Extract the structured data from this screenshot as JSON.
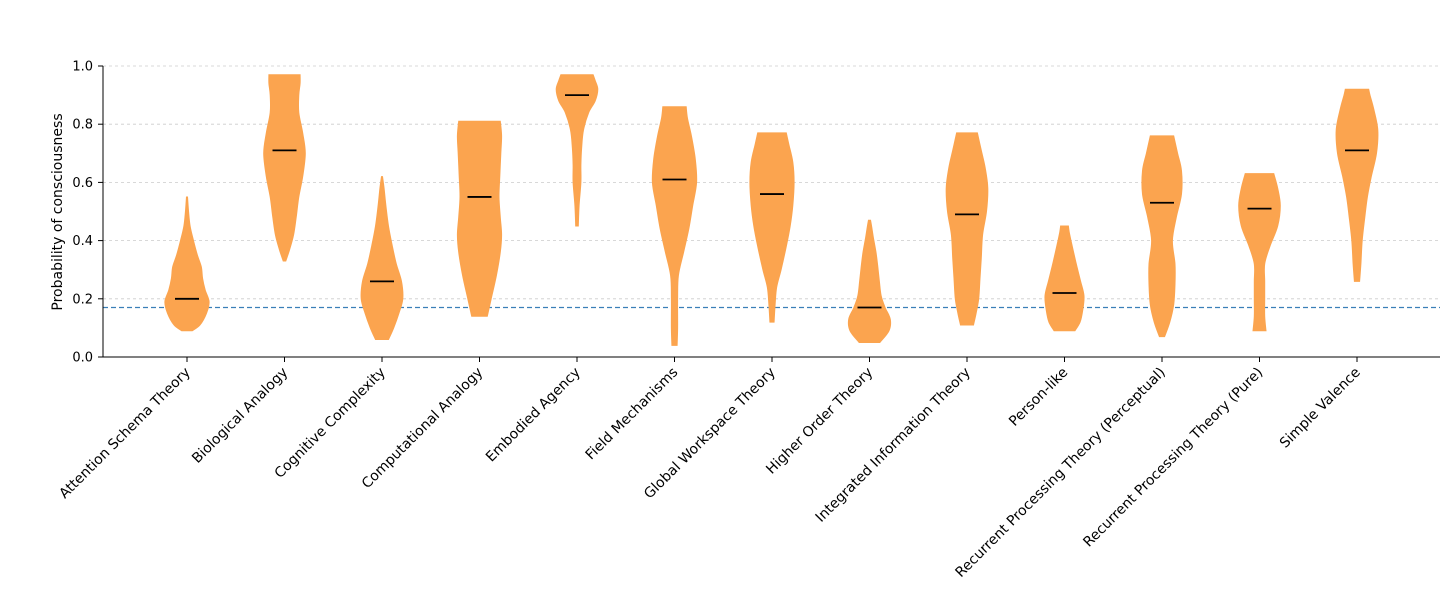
{
  "colors": {
    "violin": "#FBA44F",
    "median": "#000000",
    "reference_line": "#3A7FB8",
    "grid": "#cccccc",
    "axis": "#000000"
  },
  "chart_data": {
    "type": "violin",
    "title": "",
    "xlabel": "",
    "ylabel": "Probability of consciousness",
    "ylim": [
      0.0,
      1.0
    ],
    "yticks": [
      0.0,
      0.2,
      0.4,
      0.6,
      0.8,
      1.0
    ],
    "ytick_labels": [
      "0.0",
      "0.2",
      "0.4",
      "0.6",
      "0.8",
      "1.0"
    ],
    "grid": "horizontal dashed",
    "reference_line": {
      "y": 0.17,
      "style": "dashed"
    },
    "categories": [
      "Attention Schema Theory",
      "Biological Analogy",
      "Cognitive Complexity",
      "Computational Analogy",
      "Embodied Agency",
      "Field Mechanisms",
      "Global Workspace Theory",
      "Higher Order Theory",
      "Integrated Information Theory",
      "Person-like",
      "Recurrent Processing Theory (Perceptual)",
      "Recurrent Processing Theory (Pure)",
      "Simple Valence"
    ],
    "medians": [
      0.2,
      0.71,
      0.26,
      0.55,
      0.9,
      0.61,
      0.56,
      0.17,
      0.49,
      0.22,
      0.53,
      0.51,
      0.71
    ],
    "ranges": [
      [
        0.09,
        0.55
      ],
      [
        0.33,
        0.97
      ],
      [
        0.06,
        0.62
      ],
      [
        0.14,
        0.81
      ],
      [
        0.45,
        0.97
      ],
      [
        0.04,
        0.86
      ],
      [
        0.12,
        0.77
      ],
      [
        0.05,
        0.47
      ],
      [
        0.11,
        0.77
      ],
      [
        0.09,
        0.45
      ],
      [
        0.07,
        0.76
      ],
      [
        0.09,
        0.63
      ],
      [
        0.26,
        0.92
      ]
    ],
    "density_profiles": [
      [
        [
          0.09,
          0.2
        ],
        [
          0.11,
          0.5
        ],
        [
          0.15,
          0.75
        ],
        [
          0.19,
          0.85
        ],
        [
          0.23,
          0.7
        ],
        [
          0.27,
          0.6
        ],
        [
          0.31,
          0.55
        ],
        [
          0.35,
          0.4
        ],
        [
          0.4,
          0.25
        ],
        [
          0.45,
          0.12
        ],
        [
          0.5,
          0.06
        ],
        [
          0.55,
          0.02
        ]
      ],
      [
        [
          0.33,
          0.05
        ],
        [
          0.37,
          0.2
        ],
        [
          0.42,
          0.35
        ],
        [
          0.48,
          0.45
        ],
        [
          0.55,
          0.55
        ],
        [
          0.62,
          0.7
        ],
        [
          0.7,
          0.8
        ],
        [
          0.77,
          0.7
        ],
        [
          0.84,
          0.55
        ],
        [
          0.9,
          0.55
        ],
        [
          0.94,
          0.6
        ],
        [
          0.97,
          0.6
        ]
      ],
      [
        [
          0.06,
          0.25
        ],
        [
          0.1,
          0.45
        ],
        [
          0.15,
          0.65
        ],
        [
          0.2,
          0.8
        ],
        [
          0.26,
          0.75
        ],
        [
          0.32,
          0.55
        ],
        [
          0.38,
          0.4
        ],
        [
          0.45,
          0.25
        ],
        [
          0.52,
          0.15
        ],
        [
          0.58,
          0.08
        ],
        [
          0.62,
          0.02
        ]
      ],
      [
        [
          0.14,
          0.3
        ],
        [
          0.2,
          0.45
        ],
        [
          0.28,
          0.65
        ],
        [
          0.36,
          0.8
        ],
        [
          0.42,
          0.85
        ],
        [
          0.48,
          0.8
        ],
        [
          0.55,
          0.75
        ],
        [
          0.62,
          0.78
        ],
        [
          0.7,
          0.82
        ],
        [
          0.76,
          0.85
        ],
        [
          0.81,
          0.8
        ]
      ],
      [
        [
          0.45,
          0.05
        ],
        [
          0.52,
          0.08
        ],
        [
          0.6,
          0.15
        ],
        [
          0.66,
          0.15
        ],
        [
          0.72,
          0.18
        ],
        [
          0.78,
          0.25
        ],
        [
          0.84,
          0.45
        ],
        [
          0.88,
          0.7
        ],
        [
          0.92,
          0.8
        ],
        [
          0.95,
          0.7
        ],
        [
          0.97,
          0.62
        ]
      ],
      [
        [
          0.04,
          0.1
        ],
        [
          0.1,
          0.12
        ],
        [
          0.2,
          0.12
        ],
        [
          0.28,
          0.15
        ],
        [
          0.36,
          0.35
        ],
        [
          0.44,
          0.55
        ],
        [
          0.52,
          0.7
        ],
        [
          0.6,
          0.85
        ],
        [
          0.68,
          0.8
        ],
        [
          0.76,
          0.65
        ],
        [
          0.82,
          0.5
        ],
        [
          0.86,
          0.45
        ]
      ],
      [
        [
          0.12,
          0.08
        ],
        [
          0.18,
          0.12
        ],
        [
          0.24,
          0.18
        ],
        [
          0.3,
          0.35
        ],
        [
          0.38,
          0.55
        ],
        [
          0.45,
          0.7
        ],
        [
          0.52,
          0.8
        ],
        [
          0.6,
          0.85
        ],
        [
          0.67,
          0.8
        ],
        [
          0.73,
          0.65
        ],
        [
          0.77,
          0.55
        ]
      ],
      [
        [
          0.05,
          0.4
        ],
        [
          0.09,
          0.75
        ],
        [
          0.13,
          0.8
        ],
        [
          0.17,
          0.6
        ],
        [
          0.21,
          0.45
        ],
        [
          0.26,
          0.38
        ],
        [
          0.31,
          0.32
        ],
        [
          0.36,
          0.25
        ],
        [
          0.41,
          0.15
        ],
        [
          0.45,
          0.08
        ],
        [
          0.47,
          0.04
        ]
      ],
      [
        [
          0.11,
          0.25
        ],
        [
          0.15,
          0.35
        ],
        [
          0.2,
          0.45
        ],
        [
          0.27,
          0.5
        ],
        [
          0.34,
          0.55
        ],
        [
          0.42,
          0.6
        ],
        [
          0.5,
          0.75
        ],
        [
          0.58,
          0.8
        ],
        [
          0.65,
          0.7
        ],
        [
          0.71,
          0.55
        ],
        [
          0.77,
          0.4
        ]
      ],
      [
        [
          0.09,
          0.4
        ],
        [
          0.12,
          0.6
        ],
        [
          0.16,
          0.7
        ],
        [
          0.21,
          0.75
        ],
        [
          0.26,
          0.62
        ],
        [
          0.31,
          0.48
        ],
        [
          0.36,
          0.35
        ],
        [
          0.4,
          0.25
        ],
        [
          0.43,
          0.18
        ],
        [
          0.45,
          0.15
        ]
      ],
      [
        [
          0.07,
          0.1
        ],
        [
          0.12,
          0.3
        ],
        [
          0.18,
          0.45
        ],
        [
          0.25,
          0.5
        ],
        [
          0.32,
          0.5
        ],
        [
          0.4,
          0.4
        ],
        [
          0.48,
          0.55
        ],
        [
          0.56,
          0.75
        ],
        [
          0.64,
          0.75
        ],
        [
          0.7,
          0.6
        ],
        [
          0.76,
          0.45
        ]
      ],
      [
        [
          0.09,
          0.25
        ],
        [
          0.14,
          0.2
        ],
        [
          0.2,
          0.2
        ],
        [
          0.26,
          0.2
        ],
        [
          0.32,
          0.2
        ],
        [
          0.38,
          0.4
        ],
        [
          0.45,
          0.7
        ],
        [
          0.52,
          0.8
        ],
        [
          0.58,
          0.7
        ],
        [
          0.63,
          0.55
        ]
      ],
      [
        [
          0.26,
          0.1
        ],
        [
          0.32,
          0.15
        ],
        [
          0.4,
          0.2
        ],
        [
          0.48,
          0.3
        ],
        [
          0.55,
          0.4
        ],
        [
          0.62,
          0.55
        ],
        [
          0.7,
          0.75
        ],
        [
          0.78,
          0.8
        ],
        [
          0.85,
          0.65
        ],
        [
          0.9,
          0.5
        ],
        [
          0.92,
          0.45
        ]
      ]
    ]
  }
}
